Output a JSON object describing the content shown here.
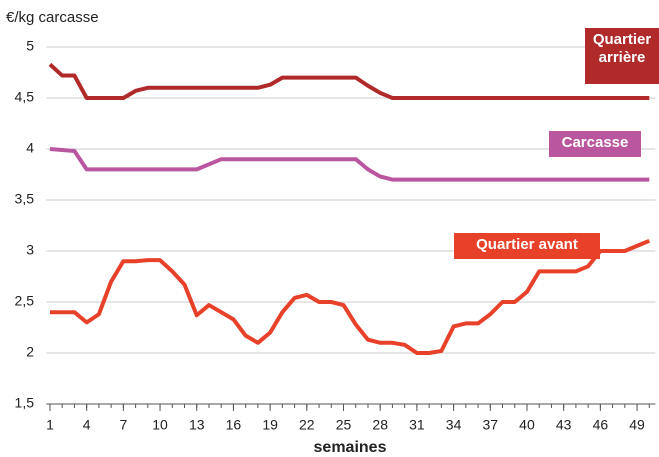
{
  "chart_data": {
    "type": "line",
    "y_label": "€/kg carcasse",
    "x_label": "semaines",
    "x": [
      1,
      2,
      3,
      4,
      5,
      6,
      7,
      8,
      9,
      10,
      11,
      12,
      13,
      14,
      15,
      16,
      17,
      18,
      19,
      20,
      21,
      22,
      23,
      24,
      25,
      26,
      27,
      28,
      29,
      30,
      31,
      32,
      33,
      34,
      35,
      36,
      37,
      38,
      39,
      40,
      41,
      42,
      43,
      44,
      45,
      46,
      47,
      48,
      49,
      50
    ],
    "xlim": [
      0.7,
      50.5
    ],
    "xticks": [
      1,
      4,
      7,
      10,
      13,
      16,
      19,
      22,
      25,
      28,
      31,
      34,
      37,
      40,
      43,
      46,
      49
    ],
    "ylim": [
      1.5,
      5
    ],
    "yticks": [
      {
        "value": 1.5,
        "label": "1,5"
      },
      2,
      {
        "value": 2.5,
        "label": "2,5"
      },
      3,
      {
        "value": 3.5,
        "label": "3,5"
      },
      4,
      {
        "value": 4.5,
        "label": "4,5"
      },
      5
    ],
    "grid": true,
    "series": [
      {
        "name": "Quartier arrière",
        "color": "#b02a2a",
        "values": [
          4.83,
          4.72,
          4.72,
          4.5,
          4.5,
          4.5,
          4.5,
          4.57,
          4.6,
          4.6,
          4.6,
          4.6,
          4.6,
          4.6,
          4.6,
          4.6,
          4.6,
          4.6,
          4.63,
          4.7,
          4.7,
          4.7,
          4.7,
          4.7,
          4.7,
          4.7,
          4.62,
          4.55,
          4.5,
          4.5,
          4.5,
          4.5,
          4.5,
          4.5,
          4.5,
          4.5,
          4.5,
          4.5,
          4.5,
          4.5,
          4.5,
          4.5,
          4.5,
          4.5,
          4.5,
          4.5,
          4.5,
          4.5,
          4.5,
          4.5
        ]
      },
      {
        "name": "Carcasse",
        "color": "#b9569f",
        "values": [
          4.0,
          3.99,
          3.98,
          3.8,
          3.8,
          3.8,
          3.8,
          3.8,
          3.8,
          3.8,
          3.8,
          3.8,
          3.8,
          3.85,
          3.9,
          3.9,
          3.9,
          3.9,
          3.9,
          3.9,
          3.9,
          3.9,
          3.9,
          3.9,
          3.9,
          3.9,
          3.8,
          3.73,
          3.7,
          3.7,
          3.7,
          3.7,
          3.7,
          3.7,
          3.7,
          3.7,
          3.7,
          3.7,
          3.7,
          3.7,
          3.7,
          3.7,
          3.7,
          3.7,
          3.7,
          3.7,
          3.7,
          3.7,
          3.7,
          3.7
        ]
      },
      {
        "name": "Quartier avant",
        "color": "#e8412a",
        "values": [
          2.4,
          2.4,
          2.4,
          2.3,
          2.38,
          2.7,
          2.9,
          2.9,
          2.91,
          2.91,
          2.8,
          2.67,
          2.37,
          2.47,
          2.4,
          2.33,
          2.17,
          2.1,
          2.2,
          2.4,
          2.54,
          2.57,
          2.5,
          2.5,
          2.47,
          2.28,
          2.13,
          2.1,
          2.1,
          2.08,
          2.0,
          2.0,
          2.02,
          2.26,
          2.29,
          2.29,
          2.38,
          2.5,
          2.5,
          2.6,
          2.8,
          2.8,
          2.8,
          2.8,
          2.85,
          3.0,
          3.0,
          3.0,
          3.05,
          3.1
        ]
      }
    ]
  }
}
